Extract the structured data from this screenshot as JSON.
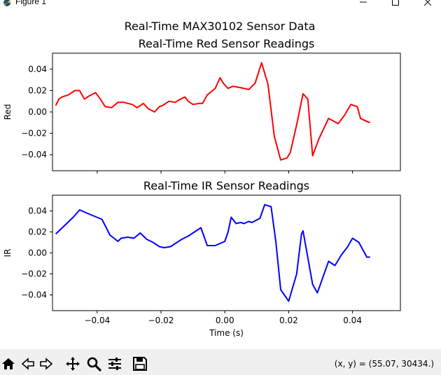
{
  "window": {
    "title": "Figure 1",
    "icons": [
      "matplotlib-icon",
      "minimize-icon",
      "maximize-icon",
      "close-icon"
    ]
  },
  "figure": {
    "suptitle": "Real-Time MAX30102 Sensor Data"
  },
  "chart_data": [
    {
      "type": "line",
      "title": "Real-Time Red Sensor Readings",
      "xlabel": "",
      "ylabel": "Red",
      "xlim": [
        -0.054,
        0.055
      ],
      "ylim": [
        -0.055,
        0.055
      ],
      "xticks": [
        -0.04,
        -0.02,
        0.0,
        0.02,
        0.04
      ],
      "xtick_labels_visible": false,
      "yticks": [
        -0.04,
        -0.02,
        0.0,
        0.02,
        0.04
      ],
      "ytick_labels": [
        "−0.04",
        "−0.02",
        "0.00",
        "0.02",
        "0.04"
      ],
      "grid": false,
      "color": "#ff0000",
      "x": [
        -0.053,
        -0.052,
        -0.051,
        -0.049,
        -0.047,
        -0.0455,
        -0.044,
        -0.0425,
        -0.0405,
        -0.039,
        -0.0375,
        -0.0355,
        -0.0335,
        -0.0315,
        -0.0305,
        -0.029,
        -0.0275,
        -0.0255,
        -0.024,
        -0.022,
        -0.0205,
        -0.0195,
        -0.0175,
        -0.0155,
        -0.0145,
        -0.0125,
        -0.0115,
        -0.01,
        -0.008,
        -0.007,
        -0.0055,
        -0.003,
        -0.0015,
        -0.0005,
        0.001,
        0.0025,
        0.0045,
        0.0075,
        0.0095,
        0.0115,
        0.0135,
        0.0155,
        0.0175,
        0.0195,
        0.0205,
        0.0225,
        0.0245,
        0.026,
        0.0275,
        0.0295,
        0.0325,
        0.0355,
        0.0375,
        0.0395,
        0.0415,
        0.0425,
        0.0445,
        0.0455
      ],
      "y": [
        0.006,
        0.012,
        0.014,
        0.016,
        0.02,
        0.02,
        0.012,
        0.015,
        0.018,
        0.012,
        0.005,
        0.004,
        0.009,
        0.009,
        0.008,
        0.007,
        0.004,
        0.008,
        0.003,
        0.0,
        0.005,
        0.006,
        0.01,
        0.009,
        0.011,
        0.014,
        0.01,
        0.007,
        0.008,
        0.008,
        0.016,
        0.022,
        0.032,
        0.027,
        0.022,
        0.024,
        0.023,
        0.021,
        0.027,
        0.046,
        0.026,
        -0.023,
        -0.045,
        -0.043,
        -0.038,
        -0.012,
        0.017,
        0.012,
        -0.041,
        -0.025,
        -0.006,
        -0.011,
        -0.003,
        0.007,
        0.005,
        -0.006,
        -0.009,
        -0.01
      ]
    },
    {
      "type": "line",
      "title": "Real-Time IR Sensor Readings",
      "xlabel": "Time (s)",
      "ylabel": "IR",
      "xlim": [
        -0.054,
        0.055
      ],
      "ylim": [
        -0.055,
        0.055
      ],
      "xticks": [
        -0.04,
        -0.02,
        0.0,
        0.02,
        0.04
      ],
      "xtick_labels": [
        "−0.04",
        "−0.02",
        "0.00",
        "0.02",
        "0.04"
      ],
      "yticks": [
        -0.04,
        -0.02,
        0.0,
        0.02,
        0.04
      ],
      "ytick_labels": [
        "−0.04",
        "−0.02",
        "0.00",
        "0.02",
        "0.04"
      ],
      "grid": false,
      "color": "#0000ff",
      "x": [
        -0.053,
        -0.0475,
        -0.0455,
        -0.0425,
        -0.0385,
        -0.036,
        -0.0335,
        -0.0325,
        -0.0305,
        -0.0285,
        -0.0265,
        -0.0245,
        -0.0225,
        -0.0205,
        -0.019,
        -0.017,
        -0.0155,
        -0.0135,
        -0.0115,
        -0.0075,
        -0.0055,
        -0.003,
        0.0,
        0.001,
        0.002,
        0.0035,
        0.005,
        0.006,
        0.0075,
        0.0085,
        0.011,
        0.0125,
        0.0145,
        0.016,
        0.0175,
        0.02,
        0.0225,
        0.024,
        0.0245,
        0.0275,
        0.029,
        0.0325,
        0.0345,
        0.0365,
        0.0385,
        0.04,
        0.042,
        0.0445,
        0.0455
      ],
      "y": [
        0.018,
        0.034,
        0.041,
        0.037,
        0.032,
        0.017,
        0.011,
        0.014,
        0.015,
        0.014,
        0.019,
        0.013,
        0.01,
        0.006,
        0.005,
        0.006,
        0.009,
        0.013,
        0.016,
        0.024,
        0.007,
        0.007,
        0.011,
        0.02,
        0.034,
        0.028,
        0.029,
        0.028,
        0.03,
        0.029,
        0.033,
        0.046,
        0.044,
        0.01,
        -0.035,
        -0.046,
        -0.02,
        0.018,
        0.021,
        -0.03,
        -0.038,
        -0.008,
        -0.012,
        -0.002,
        0.006,
        0.014,
        0.01,
        -0.004,
        -0.004
      ]
    }
  ],
  "toolbar": {
    "buttons": [
      {
        "name": "home-icon",
        "label": "Home"
      },
      {
        "name": "back-icon",
        "label": "Back"
      },
      {
        "name": "forward-icon",
        "label": "Forward"
      },
      {
        "name": "pan-icon",
        "label": "Pan"
      },
      {
        "name": "zoom-icon",
        "label": "Zoom"
      },
      {
        "name": "configure-subplots-icon",
        "label": "Configure subplots"
      },
      {
        "name": "save-icon",
        "label": "Save"
      }
    ],
    "coordinates": "(x, y) = (55.07, 30434.)"
  }
}
